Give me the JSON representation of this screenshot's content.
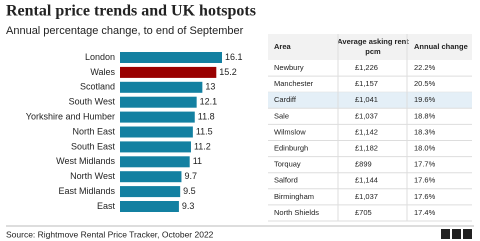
{
  "title": "Rental price trends and UK hotspots",
  "chart_data": {
    "type": "bar",
    "orientation": "horizontal",
    "subtitle": "Annual percentage change, to end of September",
    "categories": [
      "London",
      "Wales",
      "Scotland",
      "South West",
      "Yorkshire and Humber",
      "North East",
      "South East",
      "West Midlands",
      "North West",
      "East Midlands",
      "East"
    ],
    "values": [
      16.1,
      15.2,
      13,
      12.1,
      11.8,
      11.5,
      11.2,
      11,
      9.7,
      9.5,
      9.3
    ],
    "colors": [
      "#1380a1",
      "#990000",
      "#1380a1",
      "#1380a1",
      "#1380a1",
      "#1380a1",
      "#1380a1",
      "#1380a1",
      "#1380a1",
      "#1380a1",
      "#1380a1"
    ]
  },
  "table": {
    "header": [
      "Area",
      "Average asking rent pcm",
      "Annual change"
    ],
    "highlight_row": 2,
    "rows": [
      [
        "Newbury",
        "£1,226",
        "22.2%"
      ],
      [
        "Manchester",
        "£1,157",
        "20.5%"
      ],
      [
        "Cardiff",
        "£1,041",
        "19.6%"
      ],
      [
        "Sale",
        "£1,037",
        "18.8%"
      ],
      [
        "Wilmslow",
        "£1,142",
        "18.3%"
      ],
      [
        "Edinburgh",
        "£1,182",
        "18.0%"
      ],
      [
        "Torquay",
        "£899",
        "17.7%"
      ],
      [
        "Salford",
        "£1,144",
        "17.6%"
      ],
      [
        "Birmingham",
        "£1,037",
        "17.6%"
      ],
      [
        "North Shields",
        "£705",
        "17.4%"
      ]
    ]
  },
  "source": "Source: Rightmove Rental Price Tracker, October 2022",
  "logo": "BBC"
}
